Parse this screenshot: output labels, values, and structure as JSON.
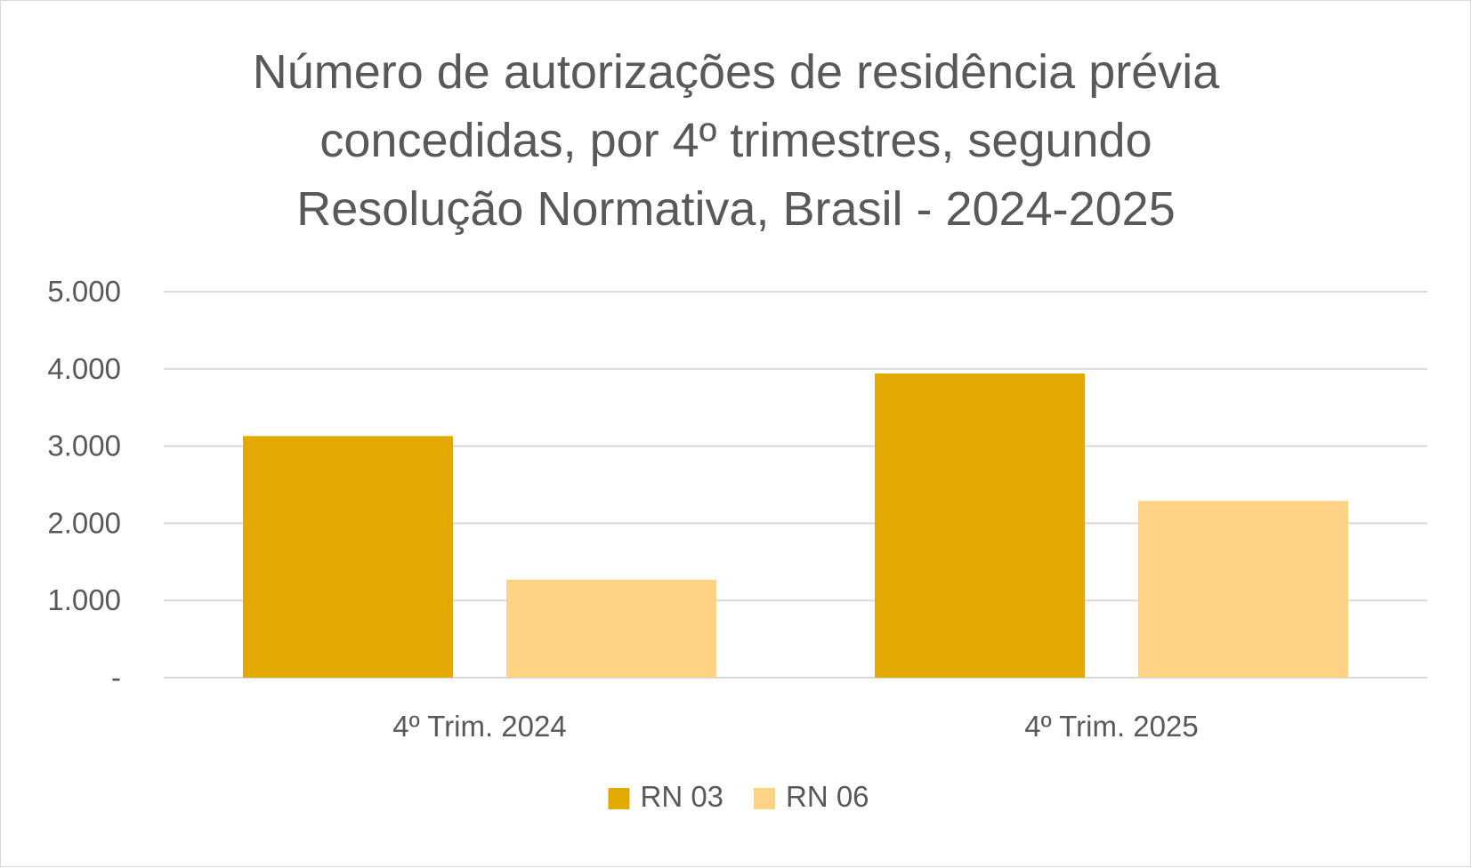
{
  "chart_data": {
    "type": "bar",
    "title_lines": [
      "Número de autorizações de residência prévia",
      "concedidas, por 4º trimestres, segundo",
      "Resolução Normativa, Brasil - 2024-2025"
    ],
    "categories": [
      "4º Trim. 2024",
      "4º Trim. 2025"
    ],
    "series": [
      {
        "name": "RN 03",
        "color": "#E2AA00",
        "values": [
          3130,
          3940
        ]
      },
      {
        "name": "RN 06",
        "color": "#FFD285",
        "values": [
          1270,
          2290
        ]
      }
    ],
    "ylim": [
      0,
      5000
    ],
    "yticks": [
      0,
      1000,
      2000,
      3000,
      4000,
      5000
    ],
    "ytick_labels": [
      "-",
      "1.000",
      "2.000",
      "3.000",
      "4.000",
      "5.000"
    ],
    "xlabel": "",
    "ylabel": "",
    "grid": true,
    "legend_position": "bottom"
  }
}
